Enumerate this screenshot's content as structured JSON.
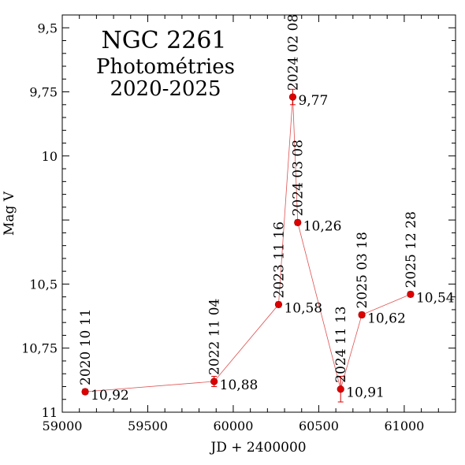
{
  "chart_data": {
    "type": "scatter",
    "title": "NGC 2261",
    "subtitle_lines": [
      "Photométries",
      "2020-2025"
    ],
    "xlabel": "JD + 2400000",
    "ylabel": "Mag V",
    "xlim": [
      59000,
      61300
    ],
    "ylim": [
      9.45,
      11.0
    ],
    "y_inverted": true,
    "x_ticks": [
      {
        "value": 59000,
        "label": "59000"
      },
      {
        "value": 59500,
        "label": "59500"
      },
      {
        "value": 60000,
        "label": "60000"
      },
      {
        "value": 60500,
        "label": "60500"
      },
      {
        "value": 61000,
        "label": "61000"
      }
    ],
    "y_ticks": [
      {
        "value": 9.5,
        "label": "9,5"
      },
      {
        "value": 9.75,
        "label": "9,75"
      },
      {
        "value": 10.0,
        "label": "10"
      },
      {
        "value": 10.5,
        "label": "10,5"
      },
      {
        "value": 10.75,
        "label": "10,75"
      },
      {
        "value": 11.0,
        "label": "11"
      }
    ],
    "grid": false,
    "point_color": "#dd0000",
    "line_color": "#e05050",
    "points": [
      {
        "x": 59134,
        "y": 10.92,
        "err": 0.01,
        "date_label": "2020 10 11",
        "mag_label": "10,92"
      },
      {
        "x": 59888,
        "y": 10.88,
        "err": 0.02,
        "date_label": "2022 11 04",
        "mag_label": "10,88"
      },
      {
        "x": 60265,
        "y": 10.58,
        "err": 0.01,
        "date_label": "2023 11 16",
        "mag_label": "10,58"
      },
      {
        "x": 60348,
        "y": 9.77,
        "err": 0.03,
        "date_label": "2024 02 08",
        "mag_label": "9,77"
      },
      {
        "x": 60377,
        "y": 10.26,
        "err": 0.01,
        "date_label": "2024 03 08",
        "mag_label": "10,26"
      },
      {
        "x": 60628,
        "y": 10.91,
        "err": 0.05,
        "date_label": "2024 11 13",
        "mag_label": "10,91"
      },
      {
        "x": 60752,
        "y": 10.62,
        "err": 0.01,
        "date_label": "2025 03 18",
        "mag_label": "10,62"
      },
      {
        "x": 61037,
        "y": 10.54,
        "err": 0.01,
        "date_label": "2025 12 28",
        "mag_label": "10,54"
      }
    ]
  }
}
